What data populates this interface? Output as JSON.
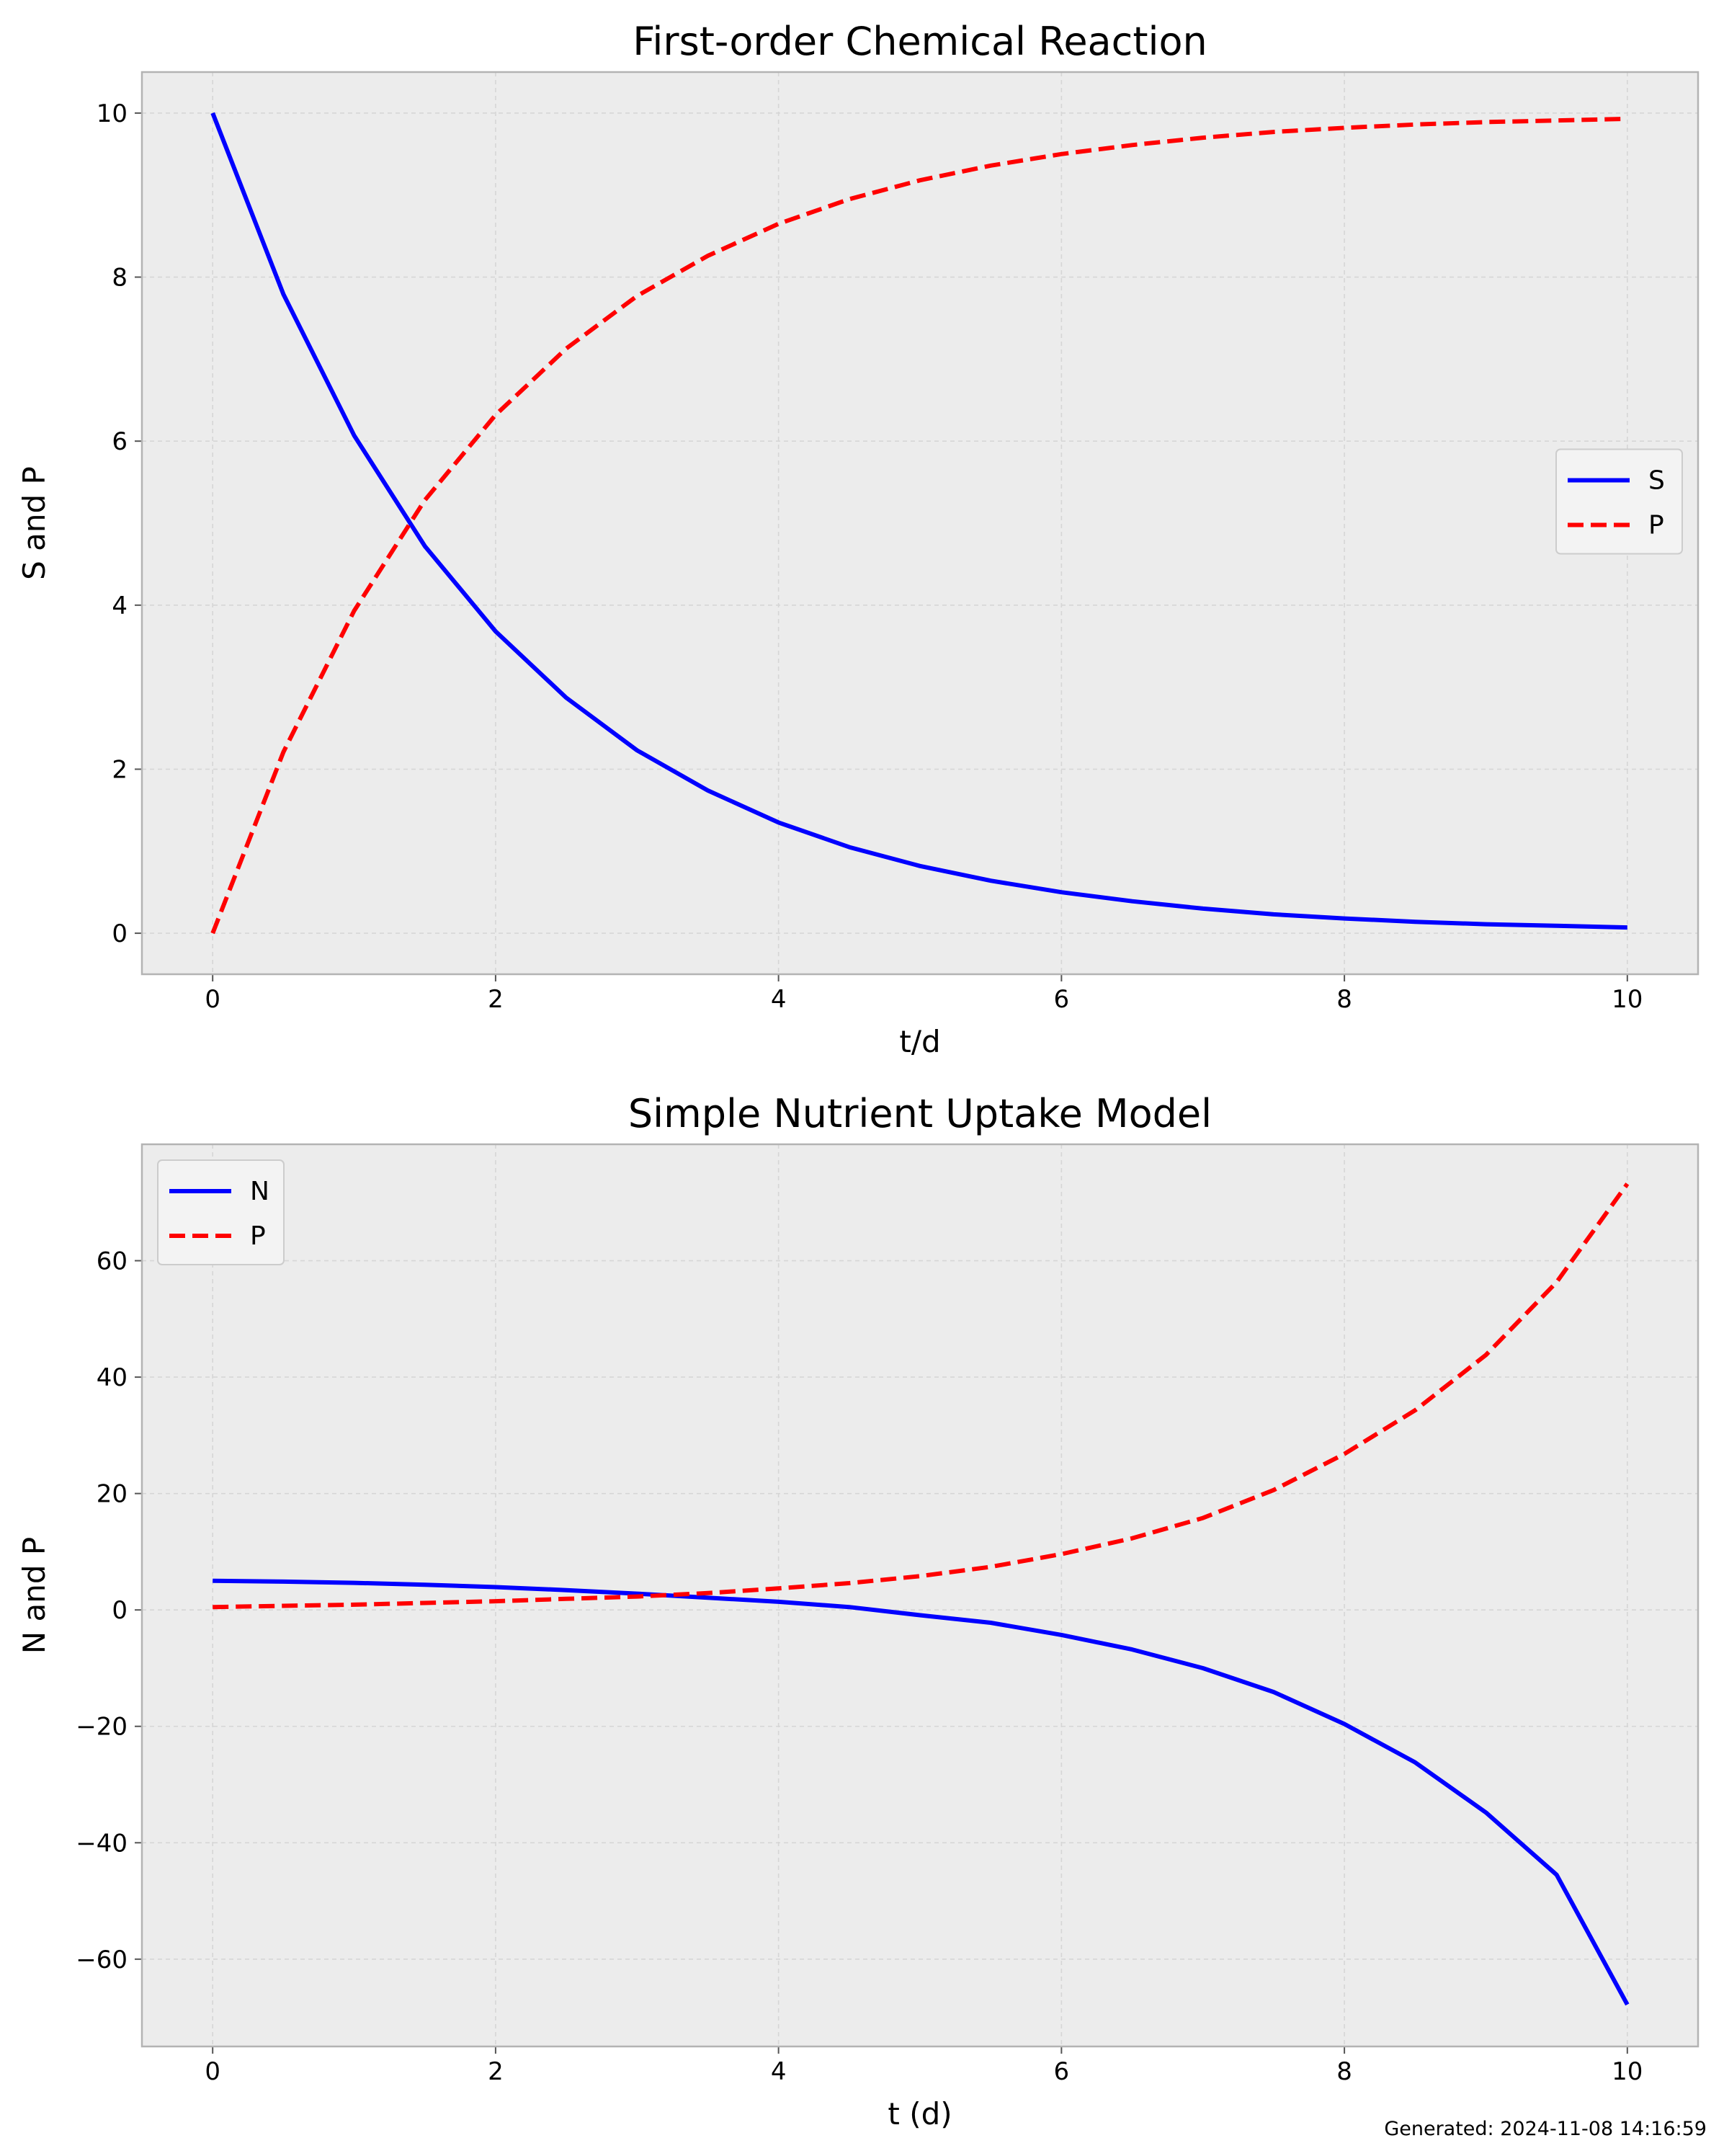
{
  "chart_data": [
    {
      "type": "line",
      "title": "First-order Chemical Reaction",
      "xlabel": "t/d",
      "ylabel": "S and P",
      "xlim": [
        -0.5,
        10.5
      ],
      "ylim": [
        -0.5,
        10.5
      ],
      "xticks": [
        "0",
        "2",
        "4",
        "6",
        "8",
        "10"
      ],
      "yticks": [
        "0",
        "2",
        "4",
        "6",
        "8",
        "10"
      ],
      "grid": true,
      "legend_position": "center-right",
      "x": [
        0,
        0.5,
        1,
        1.5,
        2,
        2.5,
        3,
        3.5,
        4,
        4.5,
        5,
        5.5,
        6,
        6.5,
        7,
        7.5,
        8,
        8.5,
        9,
        9.5,
        10
      ],
      "series": [
        {
          "name": "S",
          "color": "#0000ff",
          "style": "solid",
          "values": [
            10.0,
            7.79,
            6.07,
            4.72,
            3.68,
            2.87,
            2.23,
            1.74,
            1.35,
            1.05,
            0.82,
            0.64,
            0.5,
            0.39,
            0.3,
            0.23,
            0.18,
            0.14,
            0.11,
            0.09,
            0.07
          ]
        },
        {
          "name": "P",
          "color": "#ff0000",
          "style": "dashed",
          "values": [
            0.0,
            2.21,
            3.93,
            5.28,
            6.32,
            7.13,
            7.77,
            8.26,
            8.65,
            8.95,
            9.18,
            9.36,
            9.5,
            9.61,
            9.7,
            9.77,
            9.82,
            9.86,
            9.89,
            9.91,
            9.93
          ]
        }
      ]
    },
    {
      "type": "line",
      "title": "Simple Nutrient Uptake Model",
      "xlabel": "t (d)",
      "ylabel": "N and P",
      "xlim": [
        -0.5,
        10.5
      ],
      "ylim": [
        -75,
        80
      ],
      "xticks": [
        "0",
        "2",
        "4",
        "6",
        "8",
        "10"
      ],
      "yticks": [
        "−60",
        "−40",
        "−20",
        "0",
        "20",
        "40",
        "60"
      ],
      "grid": true,
      "legend_position": "upper-left",
      "x": [
        0,
        0.5,
        1,
        1.5,
        2,
        2.5,
        3,
        3.5,
        4,
        4.5,
        5,
        5.5,
        6,
        6.5,
        7,
        7.5,
        8,
        8.5,
        9,
        9.5,
        10
      ],
      "series": [
        {
          "name": "N",
          "color": "#0000ff",
          "style": "solid",
          "values": [
            5.0,
            4.87,
            4.66,
            4.32,
            3.92,
            3.4,
            2.8,
            2.1,
            1.4,
            0.5,
            -0.9,
            -2.2,
            -4.3,
            -6.8,
            -10.0,
            -14.1,
            -19.6,
            -26.2,
            -34.8,
            -45.5,
            -67.8
          ]
        },
        {
          "name": "P",
          "color": "#ff0000",
          "style": "dashed",
          "values": [
            0.5,
            0.7,
            0.9,
            1.2,
            1.5,
            1.9,
            2.3,
            2.9,
            3.7,
            4.6,
            5.8,
            7.4,
            9.6,
            12.3,
            15.8,
            20.6,
            26.8,
            34.3,
            43.8,
            56.3,
            73.2
          ]
        }
      ]
    }
  ],
  "footer": {
    "generated": "Generated: 2024-11-08 14:16:59"
  }
}
